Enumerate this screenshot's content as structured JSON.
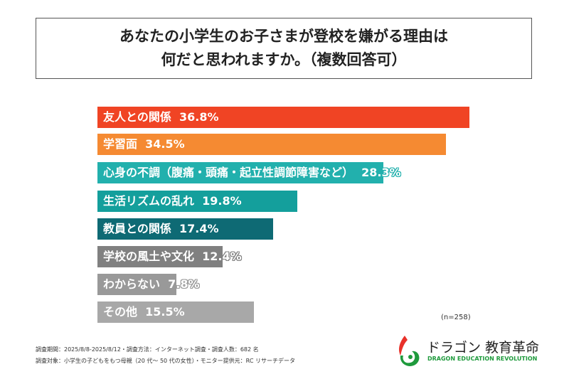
{
  "title_lines": [
    "あなたの小学生のお子さまが登校を嫌がる理由は",
    "何だと思われますか。（複数回答可）"
  ],
  "chart_data": {
    "type": "bar",
    "orientation": "horizontal",
    "categories": [
      "友人との関係",
      "学習面",
      "心身の不調（腹痛・頭痛・起立性調節障害など）",
      "生活リズムの乱れ",
      "教員との関係",
      "学校の風土や文化",
      "わからない",
      "その他"
    ],
    "values": [
      36.8,
      34.5,
      28.3,
      19.8,
      17.4,
      12.4,
      7.8,
      15.5
    ],
    "unit": "%",
    "colors": [
      "#f04424",
      "#f58a32",
      "#22b0ad",
      "#149f9c",
      "#0e6a74",
      "#808080",
      "#999999",
      "#a8a8a8"
    ]
  },
  "sample_size": "(n=258)",
  "footer": [
    "調査期間：2025/8/8-2025/8/12・調査方法：インターネット調査・調査人数：682 名",
    "調査対象：小学生の子どもをもつ母親（20 代〜 50 代の女性）・モニター提供元：RC リサーチデータ"
  ],
  "logo": {
    "name_jp": "ドラゴン 教育革命",
    "name_en": "DRAGON EDUCATION REVOLUTION"
  }
}
